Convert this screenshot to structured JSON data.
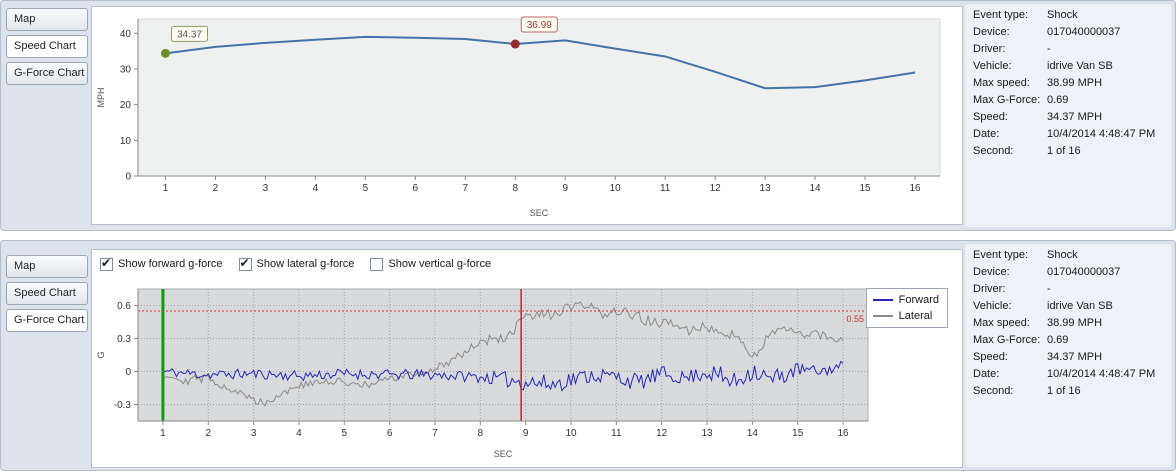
{
  "panels": [
    {
      "name": "Speed Chart panel",
      "tabs": [
        {
          "label": "Map",
          "selected": false
        },
        {
          "label": "Speed Chart",
          "selected": true
        },
        {
          "label": "G-Force Chart",
          "selected": false
        }
      ],
      "info": {
        "rows": [
          {
            "label": "Event type:",
            "value": "Shock"
          },
          {
            "label": "Device:",
            "value": "017040000037"
          },
          {
            "label": "Driver:",
            "value": "-"
          },
          {
            "label": "Vehicle:",
            "value": "idrive Van SB"
          },
          {
            "label": "Max speed:",
            "value": "38.99 MPH"
          },
          {
            "label": "Max G-Force:",
            "value": "0.69"
          },
          {
            "label": "Speed:",
            "value": "34.37 MPH"
          },
          {
            "label": "Date:",
            "value": "10/4/2014 4:48:47 PM"
          },
          {
            "label": "Second:",
            "value": "1 of 16"
          }
        ]
      }
    },
    {
      "name": "G-Force Chart panel",
      "tabs": [
        {
          "label": "Map",
          "selected": false
        },
        {
          "label": "Speed Chart",
          "selected": false
        },
        {
          "label": "G-Force Chart",
          "selected": true
        }
      ],
      "checkboxes": [
        {
          "label": "Show forward g-force",
          "checked": true
        },
        {
          "label": "Show lateral g-force",
          "checked": true
        },
        {
          "label": "Show vertical g-force",
          "checked": false
        }
      ],
      "legend": [
        {
          "label": "Forward",
          "color": "#2626bd"
        },
        {
          "label": "Lateral",
          "color": "#8a8a8a"
        }
      ],
      "info": {
        "rows": [
          {
            "label": "Event type:",
            "value": "Shock"
          },
          {
            "label": "Device:",
            "value": "017040000037"
          },
          {
            "label": "Driver:",
            "value": "-"
          },
          {
            "label": "Vehicle:",
            "value": "idrive Van SB"
          },
          {
            "label": "Max speed:",
            "value": "38.99 MPH"
          },
          {
            "label": "Max G-Force:",
            "value": "0.69"
          },
          {
            "label": "Speed:",
            "value": "34.37 MPH"
          },
          {
            "label": "Date:",
            "value": "10/4/2014 4:48:47 PM"
          },
          {
            "label": "Second:",
            "value": "1 of 16"
          }
        ]
      }
    }
  ],
  "chart_data": [
    {
      "type": "line",
      "title": "Speed chart",
      "xlabel": "SEC",
      "ylabel": "MPH",
      "xticks": [
        1,
        2,
        3,
        4,
        5,
        6,
        7,
        8,
        9,
        10,
        11,
        12,
        13,
        14,
        15,
        16
      ],
      "yticks": [
        0,
        10,
        20,
        30,
        40
      ],
      "xlim": [
        0.45,
        16.5
      ],
      "ylim": [
        0,
        44
      ],
      "series": [
        {
          "name": "Speed",
          "color": "#4572a7",
          "x": [
            1,
            2,
            3,
            4,
            5,
            6,
            7,
            8,
            9,
            10,
            11,
            12,
            13,
            14,
            15,
            16
          ],
          "values": [
            34.37,
            36.2,
            37.3,
            38.2,
            38.99,
            38.75,
            38.4,
            36.99,
            38.0,
            35.7,
            33.5,
            29.2,
            24.6,
            24.9,
            26.8,
            29.0
          ]
        }
      ],
      "markers": [
        {
          "x": 1,
          "y": 34.37,
          "label": "34.37",
          "color": "#6f8f28",
          "border": "#8f9a6a",
          "text_color": "#555555"
        },
        {
          "x": 8,
          "y": 36.99,
          "label": "36.99",
          "color": "#942a2a",
          "border": "#b06a6a",
          "text_color": "#9b3030"
        }
      ]
    },
    {
      "type": "line",
      "title": "G-force chart",
      "xlabel": "SEC",
      "ylabel": "G",
      "legend": [
        "Forward",
        "Lateral"
      ],
      "xticks": [
        1,
        2,
        3,
        4,
        5,
        6,
        7,
        8,
        9,
        10,
        11,
        12,
        13,
        14,
        15,
        16
      ],
      "yticks": [
        -0.3,
        0,
        0.3,
        0.6
      ],
      "xlim": [
        0.45,
        16.55
      ],
      "ylim": [
        -0.45,
        0.75
      ],
      "grid": "dotted",
      "threshold": {
        "y": 0.55,
        "label": "0.55",
        "color": "#cc3333"
      },
      "vlines": [
        {
          "x": 1,
          "color": "#0f9b0f",
          "width": 3,
          "name": "event-start-line"
        },
        {
          "x": 8.9,
          "color": "#cc2222",
          "width": 1.5,
          "name": "shock-moment-line"
        }
      ],
      "sample_step": 0.05,
      "series": [
        {
          "name": "Forward",
          "color": "#2626bd",
          "seed": 11,
          "keyframes": [
            [
              1,
              0
            ],
            [
              2,
              -0.03
            ],
            [
              3,
              -0.02
            ],
            [
              4,
              -0.04
            ],
            [
              5,
              -0.02
            ],
            [
              6,
              -0.03
            ],
            [
              7,
              -0.03
            ],
            [
              8,
              -0.05
            ],
            [
              9,
              -0.09
            ],
            [
              9.6,
              -0.12
            ],
            [
              10,
              -0.07
            ],
            [
              10.5,
              -0.03
            ],
            [
              11,
              -0.05
            ],
            [
              11.5,
              -0.1
            ],
            [
              12,
              -0.02
            ],
            [
              12.5,
              -0.06
            ],
            [
              13,
              0
            ],
            [
              13.6,
              -0.1
            ],
            [
              14,
              0.02
            ],
            [
              14.4,
              -0.08
            ],
            [
              15,
              0.02
            ],
            [
              15.5,
              0
            ],
            [
              16,
              0.05
            ]
          ],
          "noise": [
            [
              1,
              0.045
            ],
            [
              8,
              0.05
            ],
            [
              9,
              0.09
            ],
            [
              10.5,
              0.07
            ],
            [
              11.5,
              0.08
            ],
            [
              12.5,
              0.06
            ],
            [
              13.4,
              0.1
            ],
            [
              14.6,
              0.09
            ],
            [
              15.2,
              0.05
            ],
            [
              16,
              0.05
            ]
          ]
        },
        {
          "name": "Lateral",
          "color": "#8a8a8a",
          "seed": 29,
          "clamp_max": 0.69,
          "keyframes": [
            [
              1,
              -0.02
            ],
            [
              1.5,
              -0.08
            ],
            [
              2,
              -0.06
            ],
            [
              2.5,
              -0.16
            ],
            [
              3,
              -0.26
            ],
            [
              3.3,
              -0.28
            ],
            [
              3.6,
              -0.2
            ],
            [
              4,
              -0.13
            ],
            [
              4.5,
              -0.1
            ],
            [
              5,
              -0.09
            ],
            [
              5.5,
              -0.13
            ],
            [
              6,
              -0.07
            ],
            [
              6.5,
              -0.03
            ],
            [
              7,
              0.02
            ],
            [
              7.5,
              0.14
            ],
            [
              8,
              0.27
            ],
            [
              8.4,
              0.3
            ],
            [
              8.7,
              0.33
            ],
            [
              8.9,
              0.48
            ],
            [
              9.2,
              0.5
            ],
            [
              9.6,
              0.52
            ],
            [
              10,
              0.58
            ],
            [
              10.3,
              0.6
            ],
            [
              10.6,
              0.53
            ],
            [
              11,
              0.55
            ],
            [
              11.4,
              0.5
            ],
            [
              11.8,
              0.45
            ],
            [
              12.2,
              0.43
            ],
            [
              12.6,
              0.37
            ],
            [
              13,
              0.41
            ],
            [
              13.4,
              0.36
            ],
            [
              13.7,
              0.3
            ],
            [
              14,
              0.12
            ],
            [
              14.3,
              0.3
            ],
            [
              14.6,
              0.38
            ],
            [
              15,
              0.35
            ],
            [
              15.5,
              0.33
            ],
            [
              16,
              0.29
            ]
          ],
          "noise": [
            [
              1,
              0.04
            ],
            [
              7,
              0.035
            ],
            [
              8.5,
              0.05
            ],
            [
              11,
              0.055
            ],
            [
              13,
              0.045
            ],
            [
              16,
              0.04
            ]
          ]
        }
      ]
    }
  ]
}
